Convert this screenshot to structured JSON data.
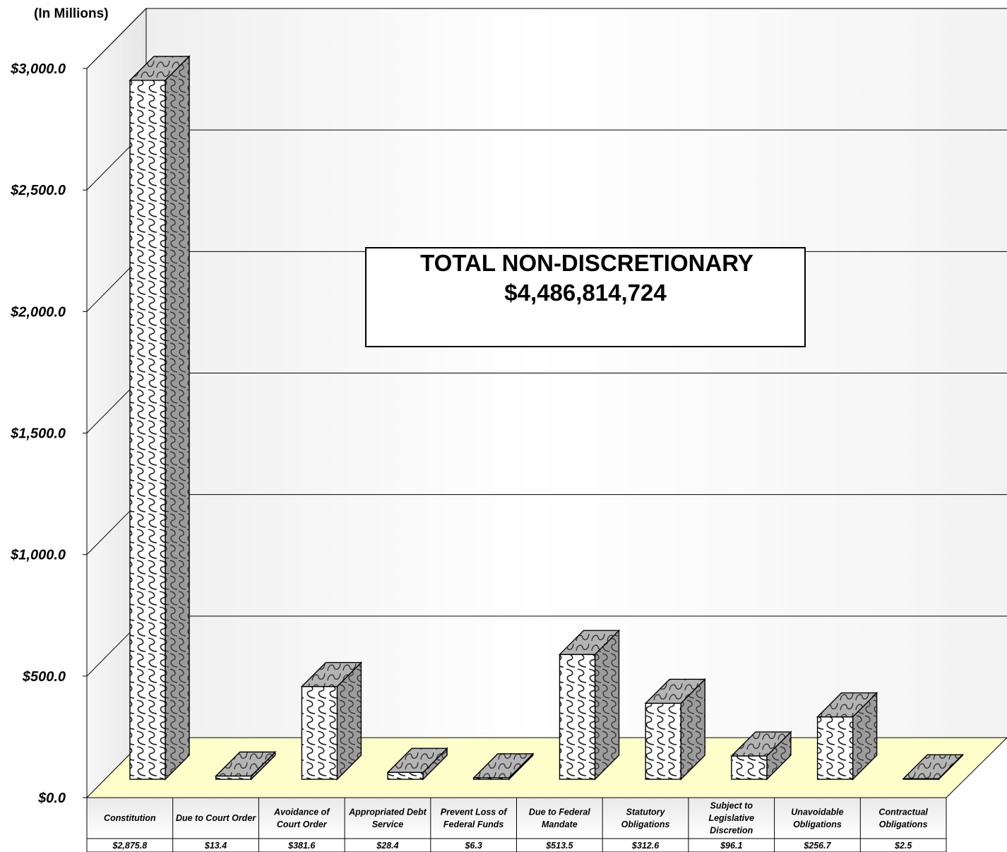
{
  "chart_data": {
    "type": "bar",
    "unit_label": "(In Millions)",
    "ylim": [
      0,
      3000
    ],
    "y_ticks": [
      {
        "value": 0,
        "label": "$0.0"
      },
      {
        "value": 500,
        "label": "$500.0"
      },
      {
        "value": 1000,
        "label": "$1,000.0"
      },
      {
        "value": 1500,
        "label": "$1,500.0"
      },
      {
        "value": 2000,
        "label": "$2,000.0"
      },
      {
        "value": 2500,
        "label": "$2,500.0"
      },
      {
        "value": 3000,
        "label": "$3,000.0"
      }
    ],
    "categories": [
      {
        "lines": [
          "Constitution"
        ]
      },
      {
        "lines": [
          "Due to Court Order"
        ]
      },
      {
        "lines": [
          "Avoidance of",
          "Court Order"
        ]
      },
      {
        "lines": [
          "Appropriated Debt",
          "Service"
        ]
      },
      {
        "lines": [
          "Prevent Loss of",
          "Federal Funds"
        ]
      },
      {
        "lines": [
          "Due to Federal",
          "Mandate"
        ]
      },
      {
        "lines": [
          "Statutory",
          "Obligations"
        ]
      },
      {
        "lines": [
          "Subject to",
          "Legislative",
          "Discretion"
        ]
      },
      {
        "lines": [
          "Unavoidable",
          "Obligations"
        ]
      },
      {
        "lines": [
          "Contractual",
          "Obligations"
        ]
      }
    ],
    "values": [
      2875.8,
      13.4,
      381.6,
      28.4,
      6.3,
      513.5,
      312.6,
      96.1,
      256.7,
      2.5
    ],
    "value_labels": [
      "$2,875.8",
      "$13.4",
      "$381.6",
      "$28.4",
      "$6.3",
      "$513.5",
      "$312.6",
      "$96.1",
      "$256.7",
      "$2.5"
    ],
    "annotation": {
      "line1": "TOTAL NON-DISCRETIONARY",
      "line2": "$4,486,814,724"
    },
    "grid": true,
    "floor_color": "#ffffcc"
  }
}
